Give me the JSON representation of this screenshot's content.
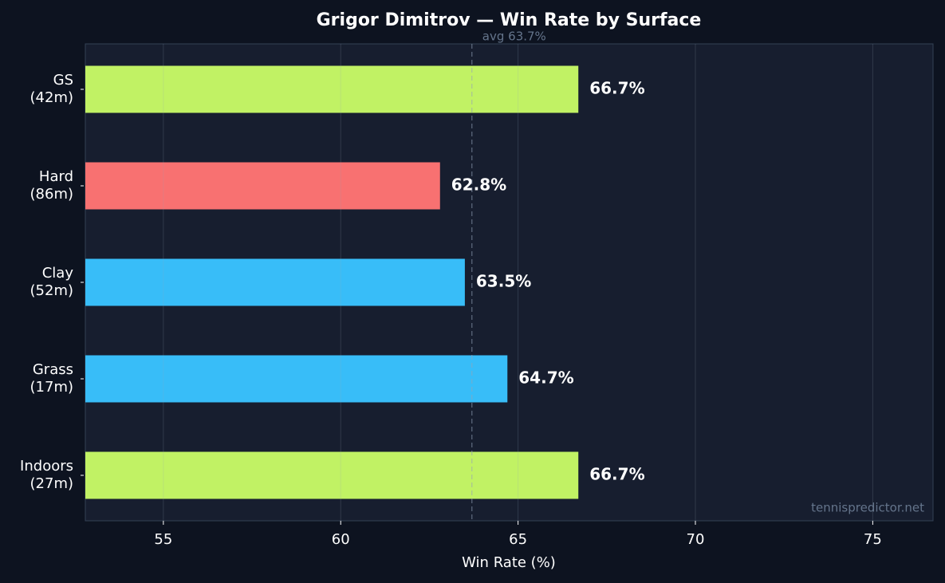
{
  "chart_data": {
    "type": "hbar",
    "title": "Grigor Dimitrov — Win Rate by Surface",
    "categories": [
      "GS\n(42m)",
      "Hard\n(86m)",
      "Clay\n(52m)",
      "Grass\n(17m)",
      "Indoors\n(27m)"
    ],
    "values": [
      66.7,
      62.8,
      63.5,
      64.7,
      66.7
    ],
    "value_labels": [
      "66.7%",
      "62.8%",
      "63.5%",
      "64.7%",
      "66.7%"
    ],
    "colors": [
      "#c1f264",
      "#f87171",
      "#38bdf8",
      "#38bdf8",
      "#c1f264"
    ],
    "xlabel": "Win Rate (%)",
    "xlim": [
      52.8,
      76.7
    ],
    "xticks": [
      55,
      60,
      65,
      70,
      75
    ],
    "grid": true,
    "reference_line": {
      "value": 63.7,
      "label": "avg 63.7%"
    },
    "watermark": "tennispredictor.net"
  }
}
